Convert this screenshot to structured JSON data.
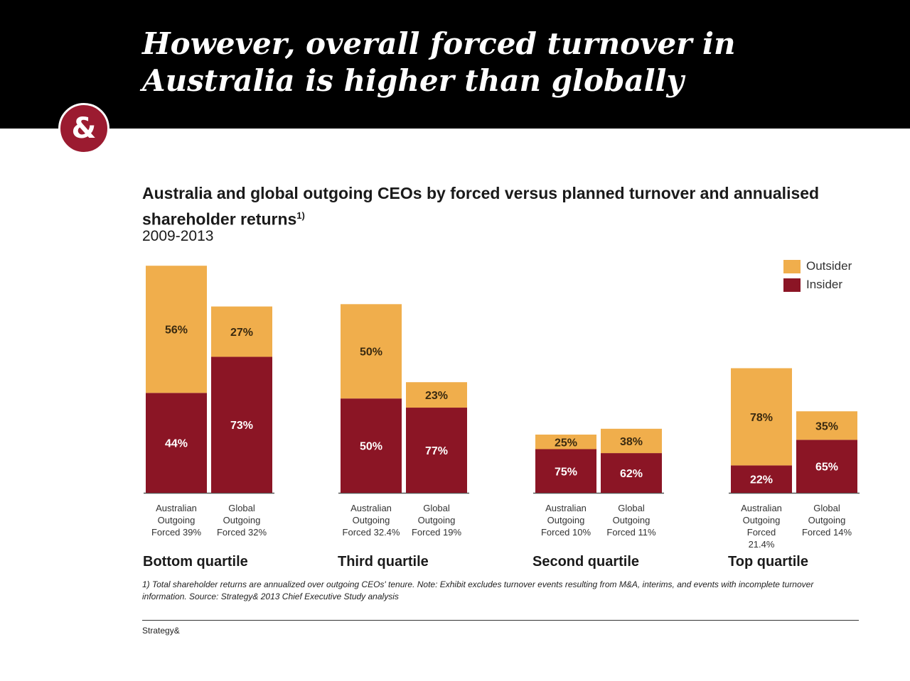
{
  "slide": {
    "title": "However, overall forced turnover in Australia is higher than globally",
    "logo_text": "&",
    "footnote": "1) Total shareholder returns are annualized over outgoing CEOs' tenure.  Note: Exhibit excludes turnover events resulting from M&A, interims, and events with incomplete turnover information.  Source: Strategy& 2013 Chief Executive Study analysis",
    "brand": "Strategy&"
  },
  "colors": {
    "outsider": "#f0ae4c",
    "insider": "#8b1525",
    "header": "#000000",
    "logo": "#9b1b30"
  },
  "chart_data": {
    "type": "bar",
    "stacked": true,
    "title": "Australia and global outgoing CEOs by forced versus planned turnover and annualised shareholder returns",
    "title_footnote_marker": "1)",
    "subtitle": "2009-2013",
    "legend": [
      "Outsider",
      "Insider"
    ],
    "legend_position": "top-right",
    "groups": [
      {
        "name": "Bottom quartile",
        "bars": [
          {
            "label_lines": [
              "Australian",
              "Outgoing",
              "Forced 39%"
            ],
            "forced_pct": 39,
            "outsider": 56,
            "insider": 44
          },
          {
            "label_lines": [
              "Global",
              "Outgoing",
              "Forced 32%"
            ],
            "forced_pct": 32,
            "outsider": 27,
            "insider": 73
          }
        ]
      },
      {
        "name": "Third quartile",
        "bars": [
          {
            "label_lines": [
              "Australian",
              "Outgoing",
              "Forced 32.4%"
            ],
            "forced_pct": 32.4,
            "outsider": 50,
            "insider": 50
          },
          {
            "label_lines": [
              "Global",
              "Outgoing",
              "Forced 19%"
            ],
            "forced_pct": 19,
            "outsider": 23,
            "insider": 77
          }
        ]
      },
      {
        "name": "Second quartile",
        "bars": [
          {
            "label_lines": [
              "Australian",
              "Outgoing",
              "Forced 10%"
            ],
            "forced_pct": 10,
            "outsider": 25,
            "insider": 75
          },
          {
            "label_lines": [
              "Global",
              "Outgoing",
              "Forced 11%"
            ],
            "forced_pct": 11,
            "outsider": 38,
            "insider": 62
          }
        ]
      },
      {
        "name": "Top quartile",
        "bars": [
          {
            "label_lines": [
              "Australian",
              "Outgoing",
              "Forced",
              "21.4%"
            ],
            "forced_pct": 21.4,
            "outsider": 78,
            "insider": 22
          },
          {
            "label_lines": [
              "Global",
              "Outgoing",
              "Forced 14%"
            ],
            "forced_pct": 14,
            "outsider": 35,
            "insider": 65
          }
        ]
      }
    ]
  }
}
